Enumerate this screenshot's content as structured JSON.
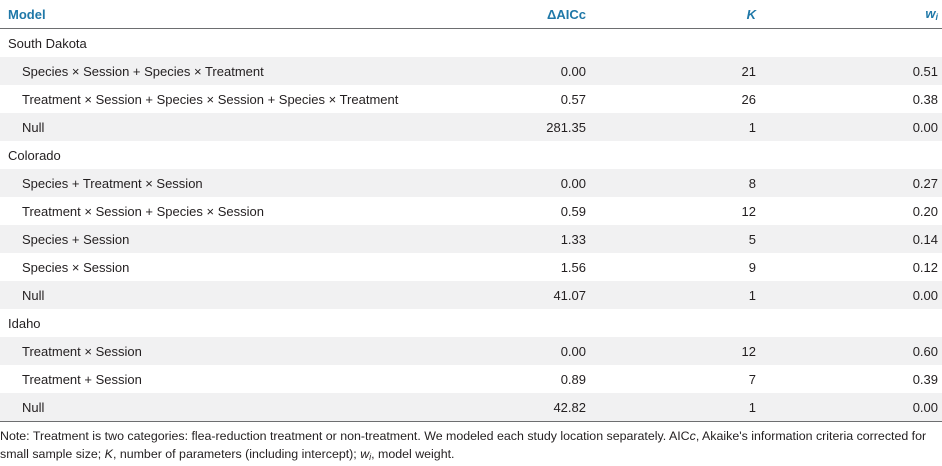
{
  "header": {
    "model": "Model",
    "daicc": "ΔAICc",
    "k": "K",
    "w": "w",
    "w_sub": "i"
  },
  "groups": [
    {
      "name": "South Dakota",
      "rows": [
        {
          "model": "Species × Session + Species × Treatment",
          "daicc": "0.00",
          "k": "21",
          "w": "0.51"
        },
        {
          "model": "Treatment × Session + Species × Session + Species × Treatment",
          "daicc": "0.57",
          "k": "26",
          "w": "0.38"
        },
        {
          "model": "Null",
          "daicc": "281.35",
          "k": "1",
          "w": "0.00"
        }
      ]
    },
    {
      "name": "Colorado",
      "rows": [
        {
          "model": "Species + Treatment × Session",
          "daicc": "0.00",
          "k": "8",
          "w": "0.27"
        },
        {
          "model": "Treatment × Session + Species × Session",
          "daicc": "0.59",
          "k": "12",
          "w": "0.20"
        },
        {
          "model": "Species + Session",
          "daicc": "1.33",
          "k": "5",
          "w": "0.14"
        },
        {
          "model": "Species × Session",
          "daicc": "1.56",
          "k": "9",
          "w": "0.12"
        },
        {
          "model": "Null",
          "daicc": "41.07",
          "k": "1",
          "w": "0.00"
        }
      ]
    },
    {
      "name": "Idaho",
      "rows": [
        {
          "model": "Treatment × Session",
          "daicc": "0.00",
          "k": "12",
          "w": "0.60"
        },
        {
          "model": "Treatment + Session",
          "daicc": "0.89",
          "k": "7",
          "w": "0.39"
        },
        {
          "model": "Null",
          "daicc": "42.82",
          "k": "1",
          "w": "0.00"
        }
      ]
    }
  ],
  "note": {
    "p1": "Note: Treatment is two categories: flea-reduction treatment or non-treatment. We modeled each study location separately. AIC",
    "p1_c": "c",
    "p2": ", Akaike's information criteria corrected for small sample size; ",
    "p2_k": "K",
    "p3": ", number of parameters (including intercept); ",
    "p3_w": "w",
    "p3_wsub": "i",
    "p4": ", model weight."
  }
}
